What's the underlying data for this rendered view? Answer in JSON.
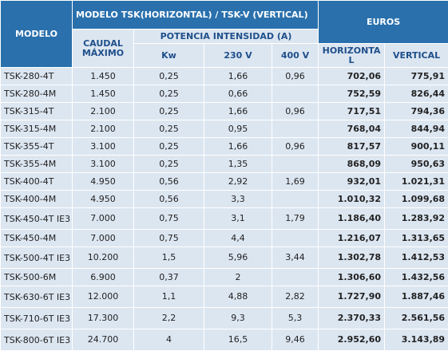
{
  "headers": {
    "modelo": "MODELO",
    "group_title": "MODELO TSK(HORIZONTAL) / TSK-V (VERTICAL)",
    "caudal": "CAUDAL MÁXIMO",
    "potencia": "POTENCIA INTENSIDAD (A)",
    "kw": "Kw",
    "v230": "230 V",
    "v400": "400 V",
    "euros": "EUROS",
    "horizontal": "HORIZONTAL",
    "vertical": "VERTICAL"
  },
  "rows": [
    {
      "model": "TSK-280-4T",
      "caudal": "1.450",
      "kw": "0,25",
      "v230": "1,66",
      "v400": "0,96",
      "horizontal": "702,06",
      "vertical": "775,91"
    },
    {
      "model": "TSK-280-4M",
      "caudal": "1.450",
      "kw": "0,25",
      "v230": "0,66",
      "v400": "",
      "horizontal": "752,59",
      "vertical": "826,44"
    },
    {
      "model": "TSK-315-4T",
      "caudal": "2.100",
      "kw": "0,25",
      "v230": "1,66",
      "v400": "0,96",
      "horizontal": "717,51",
      "vertical": "794,36"
    },
    {
      "model": "TSK-315-4M",
      "caudal": "2.100",
      "kw": "0,25",
      "v230": "0,95",
      "v400": "",
      "horizontal": "768,04",
      "vertical": "844,94"
    },
    {
      "model": "TSK-355-4T",
      "caudal": "3.100",
      "kw": "0,25",
      "v230": "1,66",
      "v400": "0,96",
      "horizontal": "817,57",
      "vertical": "900,11"
    },
    {
      "model": "TSK-355-4M",
      "caudal": "3.100",
      "kw": "0,25",
      "v230": "1,35",
      "v400": "",
      "horizontal": "868,09",
      "vertical": "950,63"
    },
    {
      "model": "TSK-400-4T",
      "caudal": "4.950",
      "kw": "0,56",
      "v230": "2,92",
      "v400": "1,69",
      "horizontal": "932,01",
      "vertical": "1.021,31"
    },
    {
      "model": "TSK-400-4M",
      "caudal": "4.950",
      "kw": "0,56",
      "v230": "3,3",
      "v400": "",
      "horizontal": "1.010,32",
      "vertical": "1.099,68"
    },
    {
      "model": "TSK-450-4T IE3",
      "caudal": "7.000",
      "kw": "0,75",
      "v230": "3,1",
      "v400": "1,79",
      "horizontal": "1.186,40",
      "vertical": "1.283,92"
    },
    {
      "model": "TSK-450-4M",
      "caudal": "7.000",
      "kw": "0,75",
      "v230": "4,4",
      "v400": "",
      "horizontal": "1.216,07",
      "vertical": "1.313,65"
    },
    {
      "model": "TSK-500-4T IE3",
      "caudal": "10.200",
      "kw": "1,5",
      "v230": "5,96",
      "v400": "3,44",
      "horizontal": "1.302,78",
      "vertical": "1.412,53"
    },
    {
      "model": "TSK-500-6M",
      "caudal": "6.900",
      "kw": "0,37",
      "v230": "2",
      "v400": "",
      "horizontal": "1.306,60",
      "vertical": "1.432,56"
    },
    {
      "model": "TSK-630-6T IE3",
      "caudal": "12.000",
      "kw": "1,1",
      "v230": "4,88",
      "v400": "2,82",
      "horizontal": "1.727,90",
      "vertical": "1.887,46"
    },
    {
      "model": "TSK-710-6T IE3",
      "caudal": "17.300",
      "kw": "2,2",
      "v230": "9,3",
      "v400": "5,3",
      "horizontal": "2.370,33",
      "vertical": "2.561,56"
    },
    {
      "model": "TSK-800-6T IE3",
      "caudal": "24.700",
      "kw": "4",
      "v230": "16,5",
      "v400": "9,46",
      "horizontal": "2.952,60",
      "vertical": "3.143,89"
    }
  ]
}
